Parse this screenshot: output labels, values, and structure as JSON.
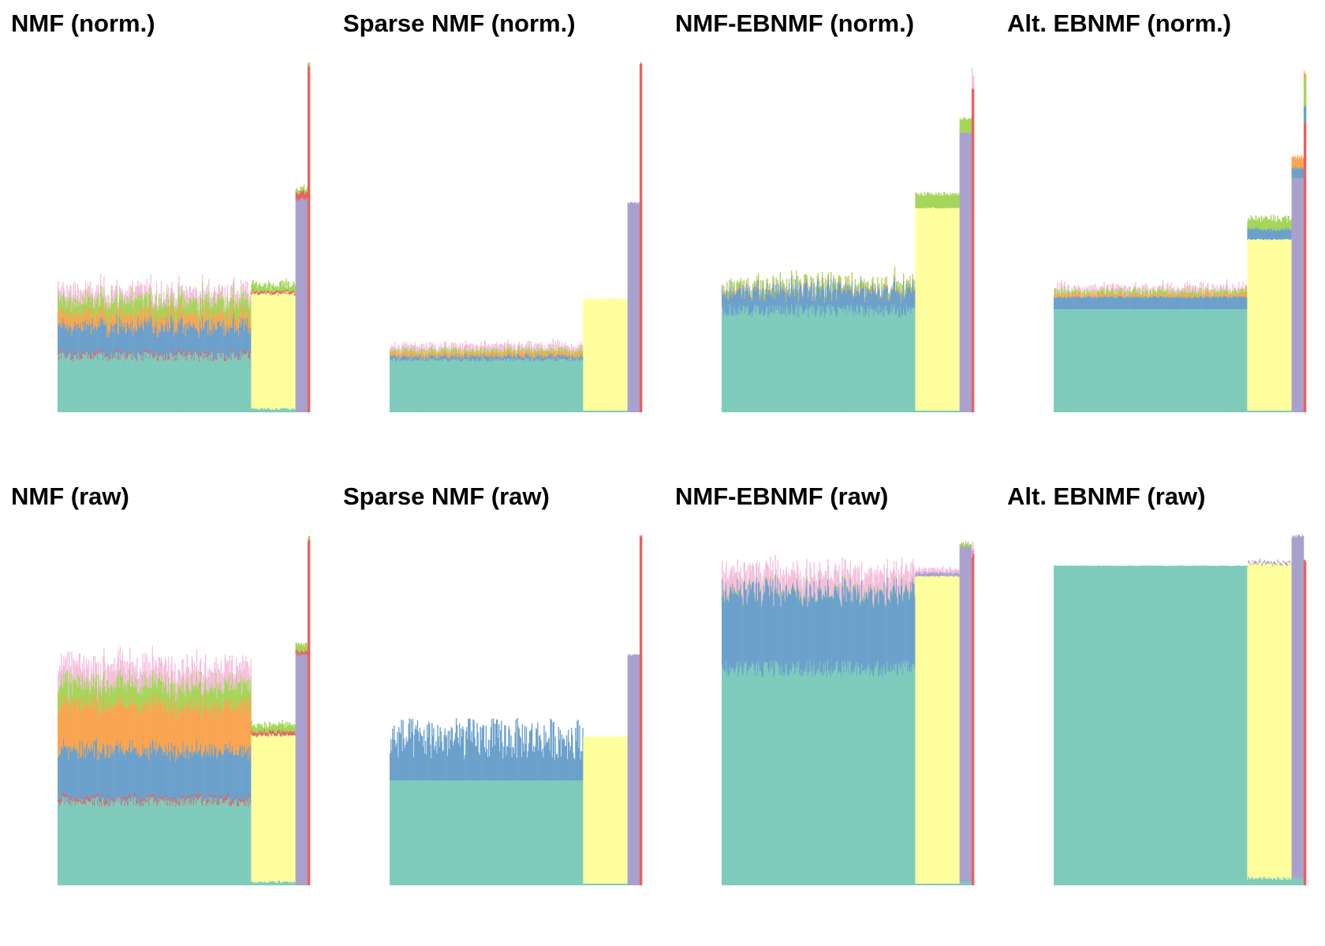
{
  "colors": {
    "teal": "#7fcbbc",
    "yellow": "#ffff9e",
    "purple": "#a9a1cd",
    "red": "#e8625e",
    "blue": "#6ca1cc",
    "orange": "#f9a552",
    "green": "#a5d65a",
    "pink": "#f6bfdd"
  },
  "chart_data": [
    {
      "type": "bar",
      "title": "NMF (norm.)",
      "segments": [
        {
          "n": 240,
          "layers": [
            {
              "color": "teal",
              "value": 0.16,
              "noise": 0.015
            },
            {
              "color": "red",
              "value": 0.006,
              "noise": 0.004
            },
            {
              "color": "blue",
              "value": 0.08,
              "noise": 0.02
            },
            {
              "color": "orange",
              "value": 0.035,
              "noise": 0.012
            },
            {
              "color": "green",
              "value": 0.04,
              "noise": 0.012
            },
            {
              "color": "pink",
              "value": 0.025,
              "noise": 0.015
            }
          ]
        },
        {
          "n": 55,
          "layers": [
            {
              "color": "teal",
              "value": 0.01,
              "noise": 0.004
            },
            {
              "color": "yellow",
              "value": 0.33,
              "noise": 0.004
            },
            {
              "color": "red",
              "value": 0.006,
              "noise": 0.002
            },
            {
              "color": "green",
              "value": 0.02,
              "noise": 0.01
            }
          ]
        },
        {
          "n": 15,
          "layers": [
            {
              "color": "purple",
              "value": 0.61,
              "noise": 0.005
            },
            {
              "color": "red",
              "value": 0.02,
              "noise": 0.005
            },
            {
              "color": "green",
              "value": 0.01,
              "noise": 0.004
            }
          ]
        },
        {
          "n": 3,
          "layers": [
            {
              "color": "red",
              "value": 0.99,
              "noise": 0.005
            },
            {
              "color": "green",
              "value": 0.01,
              "noise": 0.003
            }
          ]
        }
      ]
    },
    {
      "type": "bar",
      "title": "Sparse NMF (norm.)",
      "segments": [
        {
          "n": 240,
          "layers": [
            {
              "color": "teal",
              "value": 0.15,
              "noise": 0.005
            },
            {
              "color": "blue",
              "value": 0.01,
              "noise": 0.006
            },
            {
              "color": "orange",
              "value": 0.01,
              "noise": 0.005
            },
            {
              "color": "green",
              "value": 0.008,
              "noise": 0.005
            },
            {
              "color": "pink",
              "value": 0.012,
              "noise": 0.008
            }
          ]
        },
        {
          "n": 55,
          "layers": [
            {
              "color": "teal",
              "value": 0.005,
              "noise": 0
            },
            {
              "color": "yellow",
              "value": 0.32,
              "noise": 0.002
            }
          ]
        },
        {
          "n": 15,
          "layers": [
            {
              "color": "purple",
              "value": 0.6,
              "noise": 0.003
            }
          ]
        },
        {
          "n": 3,
          "layers": [
            {
              "color": "red",
              "value": 1.0,
              "noise": 0.003
            }
          ]
        }
      ]
    },
    {
      "type": "bar",
      "title": "NMF-EBNMF (norm.)",
      "segments": [
        {
          "n": 240,
          "layers": [
            {
              "color": "teal",
              "value": 0.29,
              "noise": 0.02
            },
            {
              "color": "blue",
              "value": 0.06,
              "noise": 0.02
            },
            {
              "color": "orange",
              "value": 0.005,
              "noise": 0.002
            },
            {
              "color": "green",
              "value": 0.012,
              "noise": 0.012
            }
          ]
        },
        {
          "n": 55,
          "layers": [
            {
              "color": "teal",
              "value": 0.005,
              "noise": 0
            },
            {
              "color": "yellow",
              "value": 0.58,
              "noise": 0.002
            },
            {
              "color": "green",
              "value": 0.04,
              "noise": 0.005
            }
          ]
        },
        {
          "n": 15,
          "layers": [
            {
              "color": "purple",
              "value": 0.8,
              "noise": 0.002
            },
            {
              "color": "green",
              "value": 0.04,
              "noise": 0.004
            }
          ]
        },
        {
          "n": 3,
          "layers": [
            {
              "color": "red",
              "value": 0.92,
              "noise": 0.01
            },
            {
              "color": "pink",
              "value": 0.05,
              "noise": 0.02
            }
          ]
        }
      ]
    },
    {
      "type": "bar",
      "title": "Alt. EBNMF (norm.)",
      "segments": [
        {
          "n": 240,
          "layers": [
            {
              "color": "teal",
              "value": 0.295,
              "noise": 0
            },
            {
              "color": "blue",
              "value": 0.035,
              "noise": 0.004
            },
            {
              "color": "orange",
              "value": 0.008,
              "noise": 0.008
            },
            {
              "color": "green",
              "value": 0.01,
              "noise": 0.01
            },
            {
              "color": "pink",
              "value": 0.01,
              "noise": 0.01
            }
          ]
        },
        {
          "n": 55,
          "layers": [
            {
              "color": "teal",
              "value": 0.005,
              "noise": 0
            },
            {
              "color": "yellow",
              "value": 0.49,
              "noise": 0.002
            },
            {
              "color": "blue",
              "value": 0.03,
              "noise": 0.005
            },
            {
              "color": "green",
              "value": 0.03,
              "noise": 0.01
            }
          ]
        },
        {
          "n": 15,
          "layers": [
            {
              "color": "purple",
              "value": 0.67,
              "noise": 0.003
            },
            {
              "color": "blue",
              "value": 0.03,
              "noise": 0.004
            },
            {
              "color": "orange",
              "value": 0.03,
              "noise": 0.004
            }
          ]
        },
        {
          "n": 3,
          "layers": [
            {
              "color": "red",
              "value": 0.83,
              "noise": 0.005
            },
            {
              "color": "blue",
              "value": 0.05,
              "noise": 0.005
            },
            {
              "color": "green",
              "value": 0.08,
              "noise": 0.01
            },
            {
              "color": "orange",
              "value": 0.02,
              "noise": 0.004
            }
          ]
        }
      ]
    },
    {
      "type": "bar",
      "title": "NMF (raw)",
      "segments": [
        {
          "n": 240,
          "layers": [
            {
              "color": "teal",
              "value": 0.24,
              "noise": 0.015
            },
            {
              "color": "red",
              "value": 0.008,
              "noise": 0.005
            },
            {
              "color": "blue",
              "value": 0.14,
              "noise": 0.02
            },
            {
              "color": "orange",
              "value": 0.13,
              "noise": 0.015
            },
            {
              "color": "green",
              "value": 0.06,
              "noise": 0.015
            },
            {
              "color": "pink",
              "value": 0.05,
              "noise": 0.02
            }
          ]
        },
        {
          "n": 55,
          "layers": [
            {
              "color": "teal",
              "value": 0.01,
              "noise": 0.004
            },
            {
              "color": "yellow",
              "value": 0.42,
              "noise": 0.003
            },
            {
              "color": "red",
              "value": 0.01,
              "noise": 0.004
            },
            {
              "color": "green",
              "value": 0.02,
              "noise": 0.008
            }
          ]
        },
        {
          "n": 15,
          "layers": [
            {
              "color": "purple",
              "value": 0.66,
              "noise": 0.005
            },
            {
              "color": "red",
              "value": 0.01,
              "noise": 0.004
            },
            {
              "color": "green",
              "value": 0.02,
              "noise": 0.005
            }
          ]
        },
        {
          "n": 3,
          "layers": [
            {
              "color": "red",
              "value": 0.99,
              "noise": 0.005
            },
            {
              "color": "green",
              "value": 0.01,
              "noise": 0.003
            }
          ]
        }
      ]
    },
    {
      "type": "bar",
      "title": "Sparse NMF (raw)",
      "segments": [
        {
          "n": 240,
          "layers": [
            {
              "color": "teal",
              "value": 0.3,
              "noise": 0
            },
            {
              "color": "blue",
              "value": 0.12,
              "noise": 0.06
            }
          ]
        },
        {
          "n": 55,
          "layers": [
            {
              "color": "teal",
              "value": 0.005,
              "noise": 0
            },
            {
              "color": "yellow",
              "value": 0.42,
              "noise": 0.002
            }
          ]
        },
        {
          "n": 15,
          "layers": [
            {
              "color": "purple",
              "value": 0.66,
              "noise": 0.003
            }
          ]
        },
        {
          "n": 3,
          "layers": [
            {
              "color": "red",
              "value": 1.0,
              "noise": 0.003
            }
          ]
        }
      ]
    },
    {
      "type": "bar",
      "title": "NMF-EBNMF (raw)",
      "segments": [
        {
          "n": 240,
          "layers": [
            {
              "color": "teal",
              "value": 0.62,
              "noise": 0.025
            },
            {
              "color": "blue",
              "value": 0.22,
              "noise": 0.025
            },
            {
              "color": "green",
              "value": 0.005,
              "noise": 0.004
            },
            {
              "color": "pink",
              "value": 0.05,
              "noise": 0.008
            }
          ]
        },
        {
          "n": 55,
          "layers": [
            {
              "color": "teal",
              "value": 0.005,
              "noise": 0
            },
            {
              "color": "yellow",
              "value": 0.88,
              "noise": 0.002
            },
            {
              "color": "purple",
              "value": 0.01,
              "noise": 0.004
            },
            {
              "color": "pink",
              "value": 0.01,
              "noise": 0.006
            }
          ]
        },
        {
          "n": 15,
          "layers": [
            {
              "color": "teal",
              "value": 0.01,
              "noise": 0
            },
            {
              "color": "purple",
              "value": 0.96,
              "noise": 0.004
            },
            {
              "color": "green",
              "value": 0.01,
              "noise": 0.004
            }
          ]
        },
        {
          "n": 3,
          "layers": [
            {
              "color": "red",
              "value": 0.95,
              "noise": 0.01
            },
            {
              "color": "pink",
              "value": 0.02,
              "noise": 0.01
            }
          ]
        }
      ]
    },
    {
      "type": "bar",
      "title": "Alt. EBNMF (raw)",
      "segments": [
        {
          "n": 240,
          "layers": [
            {
              "color": "teal",
              "value": 0.915,
              "noise": 0.001
            }
          ]
        },
        {
          "n": 55,
          "layers": [
            {
              "color": "teal",
              "value": 0.02,
              "noise": 0.005
            },
            {
              "color": "yellow",
              "value": 0.9,
              "noise": 0.003
            },
            {
              "color": "purple",
              "value": 0.005,
              "noise": 0.004
            }
          ]
        },
        {
          "n": 15,
          "layers": [
            {
              "color": "teal",
              "value": 0.02,
              "noise": 0.004
            },
            {
              "color": "purple",
              "value": 0.98,
              "noise": 0.003
            }
          ]
        },
        {
          "n": 3,
          "layers": [
            {
              "color": "red",
              "value": 0.93,
              "noise": 0.005
            }
          ]
        }
      ]
    }
  ]
}
